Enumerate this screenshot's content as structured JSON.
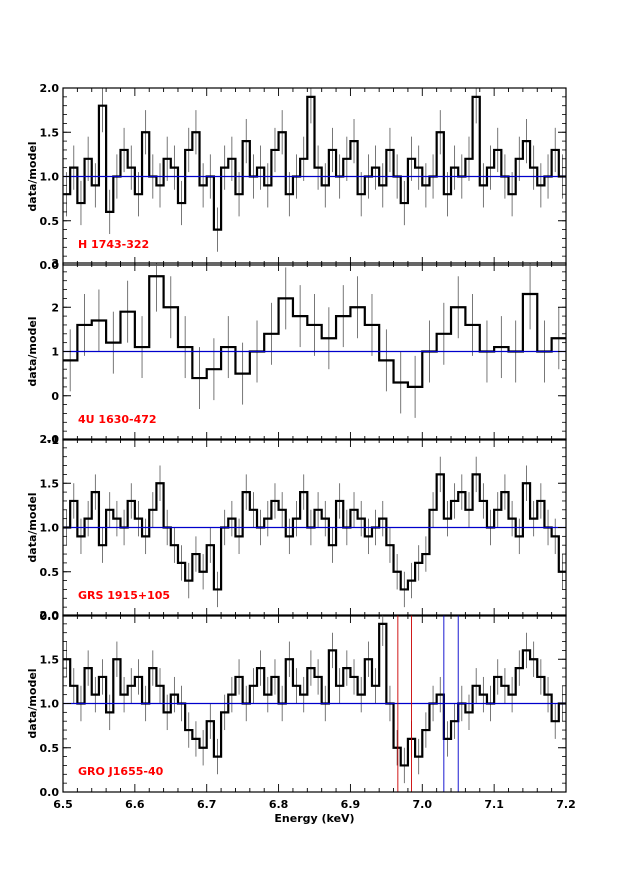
{
  "chart_data": [
    {
      "type": "line",
      "ylabel": "data/model",
      "label": "H 1743-322",
      "ylim": [
        0,
        2
      ],
      "yticks": [
        "0.0",
        "0.5",
        "1.0",
        "1.5",
        "2.0"
      ],
      "ytick_values": [
        0,
        0.5,
        1.0,
        1.5,
        2.0
      ],
      "reference_line": 1.0,
      "xlim": [
        6.5,
        7.2
      ],
      "x": [
        6.5,
        6.51,
        6.52,
        6.53,
        6.54,
        6.55,
        6.56,
        6.57,
        6.58,
        6.59,
        6.6,
        6.61,
        6.62,
        6.63,
        6.64,
        6.65,
        6.66,
        6.67,
        6.68,
        6.69,
        6.7,
        6.71,
        6.72,
        6.73,
        6.74,
        6.75,
        6.76,
        6.77,
        6.78,
        6.79,
        6.8,
        6.81,
        6.82,
        6.83,
        6.84,
        6.85,
        6.86,
        6.87,
        6.88,
        6.89,
        6.9,
        6.91,
        6.92,
        6.93,
        6.94,
        6.95,
        6.96,
        6.97,
        6.98,
        6.99,
        7.0,
        7.01,
        7.02,
        7.03,
        7.04,
        7.05,
        7.06,
        7.07,
        7.08,
        7.09,
        7.1,
        7.11,
        7.12,
        7.13,
        7.14,
        7.15,
        7.16,
        7.17,
        7.18,
        7.19
      ],
      "values": [
        0.8,
        1.1,
        0.7,
        1.2,
        0.9,
        1.8,
        0.6,
        1.0,
        1.3,
        1.1,
        0.8,
        1.5,
        1.0,
        0.9,
        1.2,
        1.1,
        0.7,
        1.3,
        1.5,
        0.9,
        1.0,
        0.4,
        1.1,
        1.2,
        0.8,
        1.4,
        1.0,
        1.1,
        0.9,
        1.3,
        1.5,
        0.8,
        1.0,
        1.2,
        1.9,
        1.1,
        0.9,
        1.3,
        1.0,
        1.2,
        1.4,
        0.8,
        1.0,
        1.1,
        0.9,
        1.3,
        1.0,
        0.7,
        1.2,
        1.1,
        0.9,
        1.0,
        1.5,
        0.8,
        1.1,
        1.0,
        1.2,
        1.9,
        0.9,
        1.1,
        1.3,
        1.0,
        0.8,
        1.2,
        1.4,
        1.1,
        0.9,
        1.0,
        1.3,
        1.0
      ],
      "errors": [
        0.25,
        0.25,
        0.25,
        0.25,
        0.25,
        0.3,
        0.25,
        0.25,
        0.25,
        0.25,
        0.25,
        0.25,
        0.25,
        0.25,
        0.25,
        0.25,
        0.25,
        0.25,
        0.25,
        0.25,
        0.25,
        0.25,
        0.25,
        0.25,
        0.25,
        0.25,
        0.25,
        0.25,
        0.25,
        0.25,
        0.25,
        0.25,
        0.25,
        0.25,
        0.3,
        0.25,
        0.25,
        0.25,
        0.25,
        0.25,
        0.25,
        0.25,
        0.25,
        0.25,
        0.25,
        0.25,
        0.25,
        0.25,
        0.25,
        0.25,
        0.25,
        0.25,
        0.25,
        0.25,
        0.25,
        0.25,
        0.25,
        0.3,
        0.25,
        0.25,
        0.25,
        0.25,
        0.25,
        0.25,
        0.25,
        0.25,
        0.25,
        0.25,
        0.25,
        0.25
      ]
    },
    {
      "type": "line",
      "ylabel": "data/model",
      "label": "4U 1630-472",
      "ylim": [
        -1,
        3
      ],
      "yticks": [
        "-1",
        "0",
        "1",
        "2",
        "3"
      ],
      "ytick_values": [
        -1,
        0,
        1,
        2,
        3
      ],
      "reference_line": 1.0,
      "xlim": [
        6.5,
        7.2
      ],
      "x": [
        6.5,
        6.52,
        6.54,
        6.56,
        6.58,
        6.6,
        6.62,
        6.64,
        6.66,
        6.68,
        6.7,
        6.72,
        6.74,
        6.76,
        6.78,
        6.8,
        6.82,
        6.84,
        6.86,
        6.88,
        6.9,
        6.92,
        6.94,
        6.96,
        6.98,
        7.0,
        7.02,
        7.04,
        7.06,
        7.08,
        7.1,
        7.12,
        7.14,
        7.16,
        7.18
      ],
      "values": [
        0.8,
        1.6,
        1.7,
        1.2,
        1.9,
        1.1,
        2.7,
        2.0,
        1.1,
        0.4,
        0.6,
        1.1,
        0.5,
        1.0,
        1.4,
        2.2,
        1.8,
        1.6,
        1.3,
        1.8,
        2.0,
        1.6,
        0.8,
        0.3,
        0.2,
        1.0,
        1.4,
        2.0,
        1.6,
        1.0,
        1.1,
        1.0,
        2.3,
        1.0,
        1.3
      ],
      "errors": [
        0.7,
        0.7,
        0.7,
        0.7,
        0.7,
        0.7,
        0.8,
        0.7,
        0.7,
        0.7,
        0.7,
        0.7,
        0.7,
        0.7,
        0.7,
        0.7,
        0.7,
        0.7,
        0.7,
        0.7,
        0.7,
        0.7,
        0.7,
        0.7,
        0.7,
        0.7,
        0.7,
        0.7,
        0.7,
        0.7,
        0.7,
        0.7,
        0.8,
        0.7,
        0.7
      ]
    },
    {
      "type": "line",
      "ylabel": "data/model",
      "label": "GRS 1915+105",
      "ylim": [
        0,
        2
      ],
      "yticks": [
        "0.0",
        "0.5",
        "1.0",
        "1.5",
        "2.0"
      ],
      "ytick_values": [
        0,
        0.5,
        1.0,
        1.5,
        2.0
      ],
      "reference_line": 1.0,
      "xlim": [
        6.5,
        7.2
      ],
      "x": [
        6.5,
        6.51,
        6.52,
        6.53,
        6.54,
        6.55,
        6.56,
        6.57,
        6.58,
        6.59,
        6.6,
        6.61,
        6.62,
        6.63,
        6.64,
        6.65,
        6.66,
        6.67,
        6.68,
        6.69,
        6.7,
        6.71,
        6.72,
        6.73,
        6.74,
        6.75,
        6.76,
        6.77,
        6.78,
        6.79,
        6.8,
        6.81,
        6.82,
        6.83,
        6.84,
        6.85,
        6.86,
        6.87,
        6.88,
        6.89,
        6.9,
        6.91,
        6.92,
        6.93,
        6.94,
        6.95,
        6.96,
        6.97,
        6.98,
        6.99,
        7.0,
        7.01,
        7.02,
        7.03,
        7.04,
        7.05,
        7.06,
        7.07,
        7.08,
        7.09,
        7.1,
        7.11,
        7.12,
        7.13,
        7.14,
        7.15,
        7.16,
        7.17,
        7.18,
        7.19
      ],
      "values": [
        1.0,
        1.3,
        0.9,
        1.1,
        1.4,
        0.8,
        1.2,
        1.1,
        1.0,
        1.3,
        1.1,
        0.9,
        1.2,
        1.5,
        1.0,
        0.8,
        0.6,
        0.4,
        0.7,
        0.5,
        0.8,
        0.3,
        1.0,
        1.1,
        0.9,
        1.4,
        1.2,
        1.0,
        1.1,
        1.3,
        1.2,
        0.9,
        1.1,
        1.4,
        1.0,
        1.2,
        1.1,
        0.8,
        1.3,
        1.0,
        1.2,
        1.1,
        0.9,
        1.0,
        1.1,
        0.8,
        0.5,
        0.3,
        0.4,
        0.6,
        0.7,
        1.2,
        1.6,
        1.1,
        1.3,
        1.4,
        1.2,
        1.6,
        1.3,
        1.0,
        1.2,
        1.4,
        1.1,
        0.9,
        1.5,
        1.1,
        1.3,
        1.0,
        0.9,
        0.5
      ],
      "errors": [
        0.2,
        0.2,
        0.2,
        0.2,
        0.2,
        0.2,
        0.2,
        0.2,
        0.2,
        0.2,
        0.2,
        0.2,
        0.2,
        0.2,
        0.2,
        0.2,
        0.2,
        0.2,
        0.2,
        0.2,
        0.2,
        0.2,
        0.2,
        0.2,
        0.2,
        0.2,
        0.2,
        0.2,
        0.2,
        0.2,
        0.2,
        0.2,
        0.2,
        0.2,
        0.2,
        0.2,
        0.2,
        0.2,
        0.2,
        0.2,
        0.2,
        0.2,
        0.2,
        0.2,
        0.2,
        0.2,
        0.2,
        0.2,
        0.2,
        0.2,
        0.2,
        0.2,
        0.2,
        0.2,
        0.2,
        0.2,
        0.2,
        0.2,
        0.2,
        0.2,
        0.2,
        0.2,
        0.2,
        0.2,
        0.2,
        0.2,
        0.2,
        0.2,
        0.2,
        0.2
      ]
    },
    {
      "type": "line",
      "ylabel": "data/model",
      "xlabel": "Energy (keV)",
      "label": "GRO J1655-40",
      "ylim": [
        0,
        2
      ],
      "yticks": [
        "0.0",
        "0.5",
        "1.0",
        "1.5",
        "2.0"
      ],
      "ytick_values": [
        0,
        0.5,
        1.0,
        1.5,
        2.0
      ],
      "xticks": [
        "6.5",
        "6.6",
        "6.7",
        "6.8",
        "6.9",
        "7.0",
        "7.1",
        "7.2"
      ],
      "xtick_values": [
        6.5,
        6.6,
        6.7,
        6.8,
        6.9,
        7.0,
        7.1,
        7.2
      ],
      "reference_line": 1.0,
      "xlim": [
        6.5,
        7.2
      ],
      "red_lines": [
        6.966,
        6.985
      ],
      "blue_lines": [
        7.03,
        7.05
      ],
      "x": [
        6.5,
        6.51,
        6.52,
        6.53,
        6.54,
        6.55,
        6.56,
        6.57,
        6.58,
        6.59,
        6.6,
        6.61,
        6.62,
        6.63,
        6.64,
        6.65,
        6.66,
        6.67,
        6.68,
        6.69,
        6.7,
        6.71,
        6.72,
        6.73,
        6.74,
        6.75,
        6.76,
        6.77,
        6.78,
        6.79,
        6.8,
        6.81,
        6.82,
        6.83,
        6.84,
        6.85,
        6.86,
        6.87,
        6.88,
        6.89,
        6.9,
        6.91,
        6.92,
        6.93,
        6.94,
        6.95,
        6.96,
        6.97,
        6.98,
        6.99,
        7.0,
        7.01,
        7.02,
        7.03,
        7.04,
        7.05,
        7.06,
        7.07,
        7.08,
        7.09,
        7.1,
        7.11,
        7.12,
        7.13,
        7.14,
        7.15,
        7.16,
        7.17,
        7.18,
        7.19
      ],
      "values": [
        1.5,
        1.2,
        1.0,
        1.4,
        1.1,
        1.3,
        0.9,
        1.5,
        1.1,
        1.2,
        1.3,
        1.0,
        1.4,
        1.2,
        0.9,
        1.1,
        1.0,
        0.7,
        0.6,
        0.5,
        0.8,
        0.4,
        0.9,
        1.1,
        1.3,
        1.0,
        1.2,
        1.4,
        1.1,
        1.3,
        1.0,
        1.5,
        1.2,
        1.1,
        1.4,
        1.3,
        1.0,
        1.6,
        1.2,
        1.4,
        1.3,
        1.1,
        1.5,
        1.2,
        1.9,
        1.0,
        0.5,
        0.3,
        0.6,
        0.4,
        0.7,
        1.0,
        1.1,
        0.6,
        0.8,
        1.0,
        0.9,
        1.2,
        1.1,
        1.0,
        1.3,
        1.2,
        1.1,
        1.4,
        1.6,
        1.5,
        1.3,
        1.1,
        0.8,
        1.0
      ],
      "errors": [
        0.2,
        0.2,
        0.2,
        0.2,
        0.2,
        0.2,
        0.2,
        0.2,
        0.2,
        0.2,
        0.2,
        0.2,
        0.2,
        0.2,
        0.2,
        0.2,
        0.2,
        0.2,
        0.2,
        0.2,
        0.2,
        0.2,
        0.2,
        0.2,
        0.2,
        0.2,
        0.2,
        0.2,
        0.2,
        0.2,
        0.2,
        0.2,
        0.2,
        0.2,
        0.2,
        0.2,
        0.2,
        0.2,
        0.2,
        0.2,
        0.2,
        0.2,
        0.2,
        0.2,
        0.25,
        0.2,
        0.2,
        0.2,
        0.2,
        0.2,
        0.2,
        0.2,
        0.2,
        0.2,
        0.2,
        0.2,
        0.2,
        0.2,
        0.2,
        0.2,
        0.2,
        0.2,
        0.2,
        0.2,
        0.2,
        0.2,
        0.2,
        0.2,
        0.2,
        0.2
      ]
    }
  ],
  "colors": {
    "data_line": "#000000",
    "error_bar": "#555555",
    "reference_line": "#0000cc",
    "label_text": "#ff0000",
    "red_marker": "#cc0000",
    "blue_marker": "#0000cc"
  }
}
